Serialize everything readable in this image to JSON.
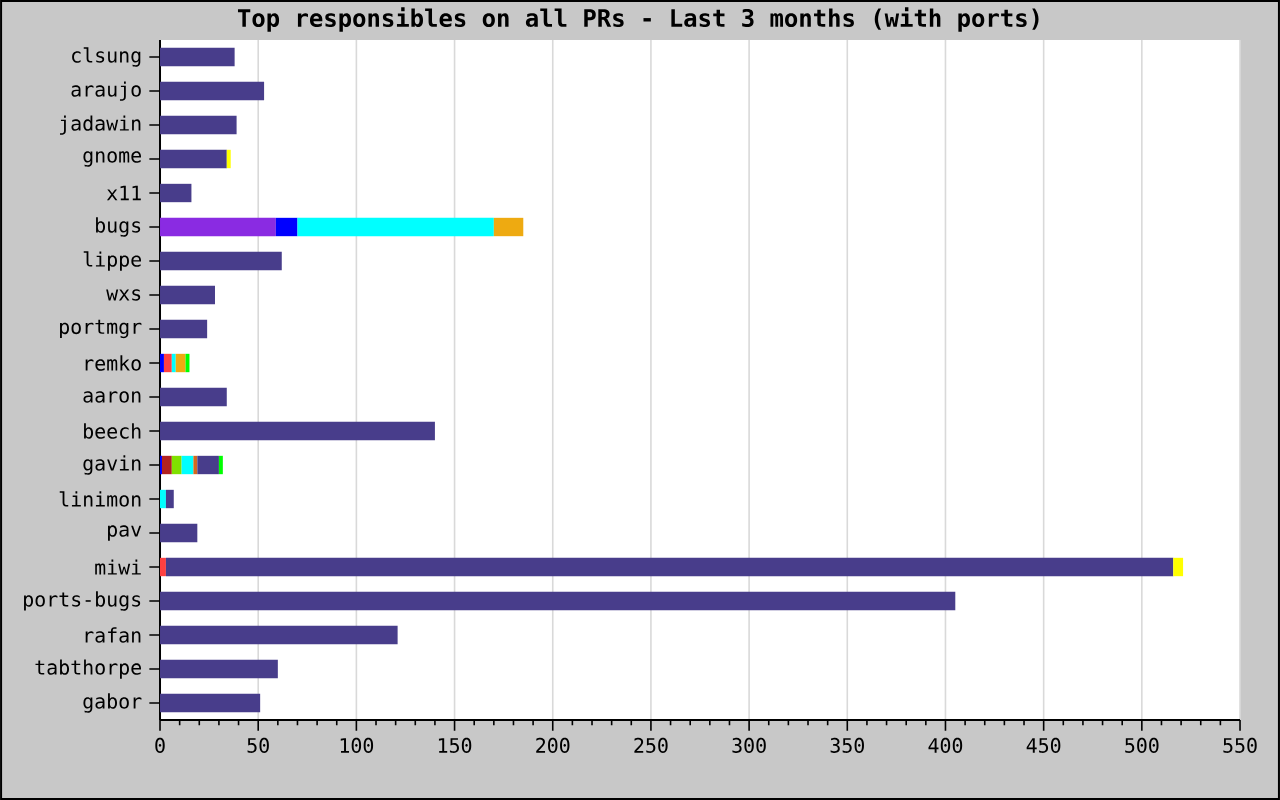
{
  "chart_data": {
    "type": "bar",
    "orientation": "horizontal",
    "stacked": true,
    "title": "Top responsibles on all PRs - Last 3 months (with ports)",
    "categories": [
      "clsung",
      "araujo",
      "jadawin",
      "gnome",
      "x11",
      "bugs",
      "lippe",
      "wxs",
      "portmgr",
      "remko",
      "aaron",
      "beech",
      "gavin",
      "linimon",
      "pav",
      "miwi",
      "ports-bugs",
      "rafan",
      "tabthorpe",
      "gabor"
    ],
    "series": [
      {
        "color": "#8a2be2",
        "values": [
          null,
          null,
          null,
          null,
          null,
          59,
          null,
          null,
          null,
          null,
          null,
          null,
          null,
          null,
          null,
          null,
          null,
          null,
          null,
          null
        ]
      },
      {
        "color": "#0000ff",
        "values": [
          null,
          null,
          null,
          null,
          null,
          11,
          null,
          null,
          null,
          2,
          null,
          null,
          1,
          null,
          null,
          null,
          null,
          null,
          null,
          null
        ]
      },
      {
        "color": "#b22222",
        "values": [
          null,
          null,
          null,
          null,
          null,
          null,
          null,
          null,
          null,
          null,
          null,
          null,
          5,
          null,
          null,
          null,
          null,
          null,
          null,
          null
        ]
      },
      {
        "color": "#ff4040",
        "values": [
          null,
          null,
          null,
          null,
          null,
          null,
          null,
          null,
          null,
          4,
          null,
          null,
          null,
          null,
          null,
          3,
          null,
          null,
          null,
          null
        ]
      },
      {
        "color": "#80e000",
        "values": [
          null,
          null,
          null,
          null,
          null,
          null,
          null,
          null,
          null,
          null,
          null,
          null,
          5,
          null,
          null,
          null,
          null,
          null,
          null,
          null
        ]
      },
      {
        "color": "#00ffff",
        "values": [
          null,
          null,
          null,
          null,
          null,
          100,
          null,
          null,
          null,
          2,
          null,
          null,
          6,
          3,
          null,
          null,
          null,
          null,
          null,
          null
        ]
      },
      {
        "color": "#d2691e",
        "values": [
          null,
          null,
          null,
          null,
          null,
          null,
          null,
          null,
          null,
          null,
          null,
          null,
          2,
          null,
          null,
          null,
          null,
          null,
          null,
          null
        ]
      },
      {
        "color": "#483d8b",
        "values": [
          38,
          53,
          39,
          34,
          16,
          null,
          62,
          28,
          24,
          null,
          34,
          140,
          11,
          4,
          19,
          513,
          405,
          121,
          60,
          51
        ]
      },
      {
        "color": "#eeaa11",
        "values": [
          null,
          null,
          null,
          null,
          null,
          15,
          null,
          null,
          null,
          5,
          null,
          null,
          null,
          null,
          null,
          null,
          null,
          null,
          null,
          null
        ]
      },
      {
        "color": "#ffff00",
        "values": [
          null,
          null,
          null,
          2,
          null,
          null,
          null,
          null,
          null,
          null,
          null,
          null,
          null,
          null,
          null,
          5,
          null,
          null,
          null,
          null
        ]
      },
      {
        "color": "#00ff00",
        "values": [
          null,
          null,
          null,
          null,
          null,
          null,
          null,
          null,
          null,
          2,
          null,
          null,
          2,
          null,
          null,
          null,
          null,
          null,
          null,
          null
        ]
      }
    ],
    "xlim": [
      0,
      550
    ],
    "xticks": [
      0,
      50,
      100,
      150,
      200,
      250,
      300,
      350,
      400,
      450,
      500,
      550
    ],
    "grid": "x"
  }
}
